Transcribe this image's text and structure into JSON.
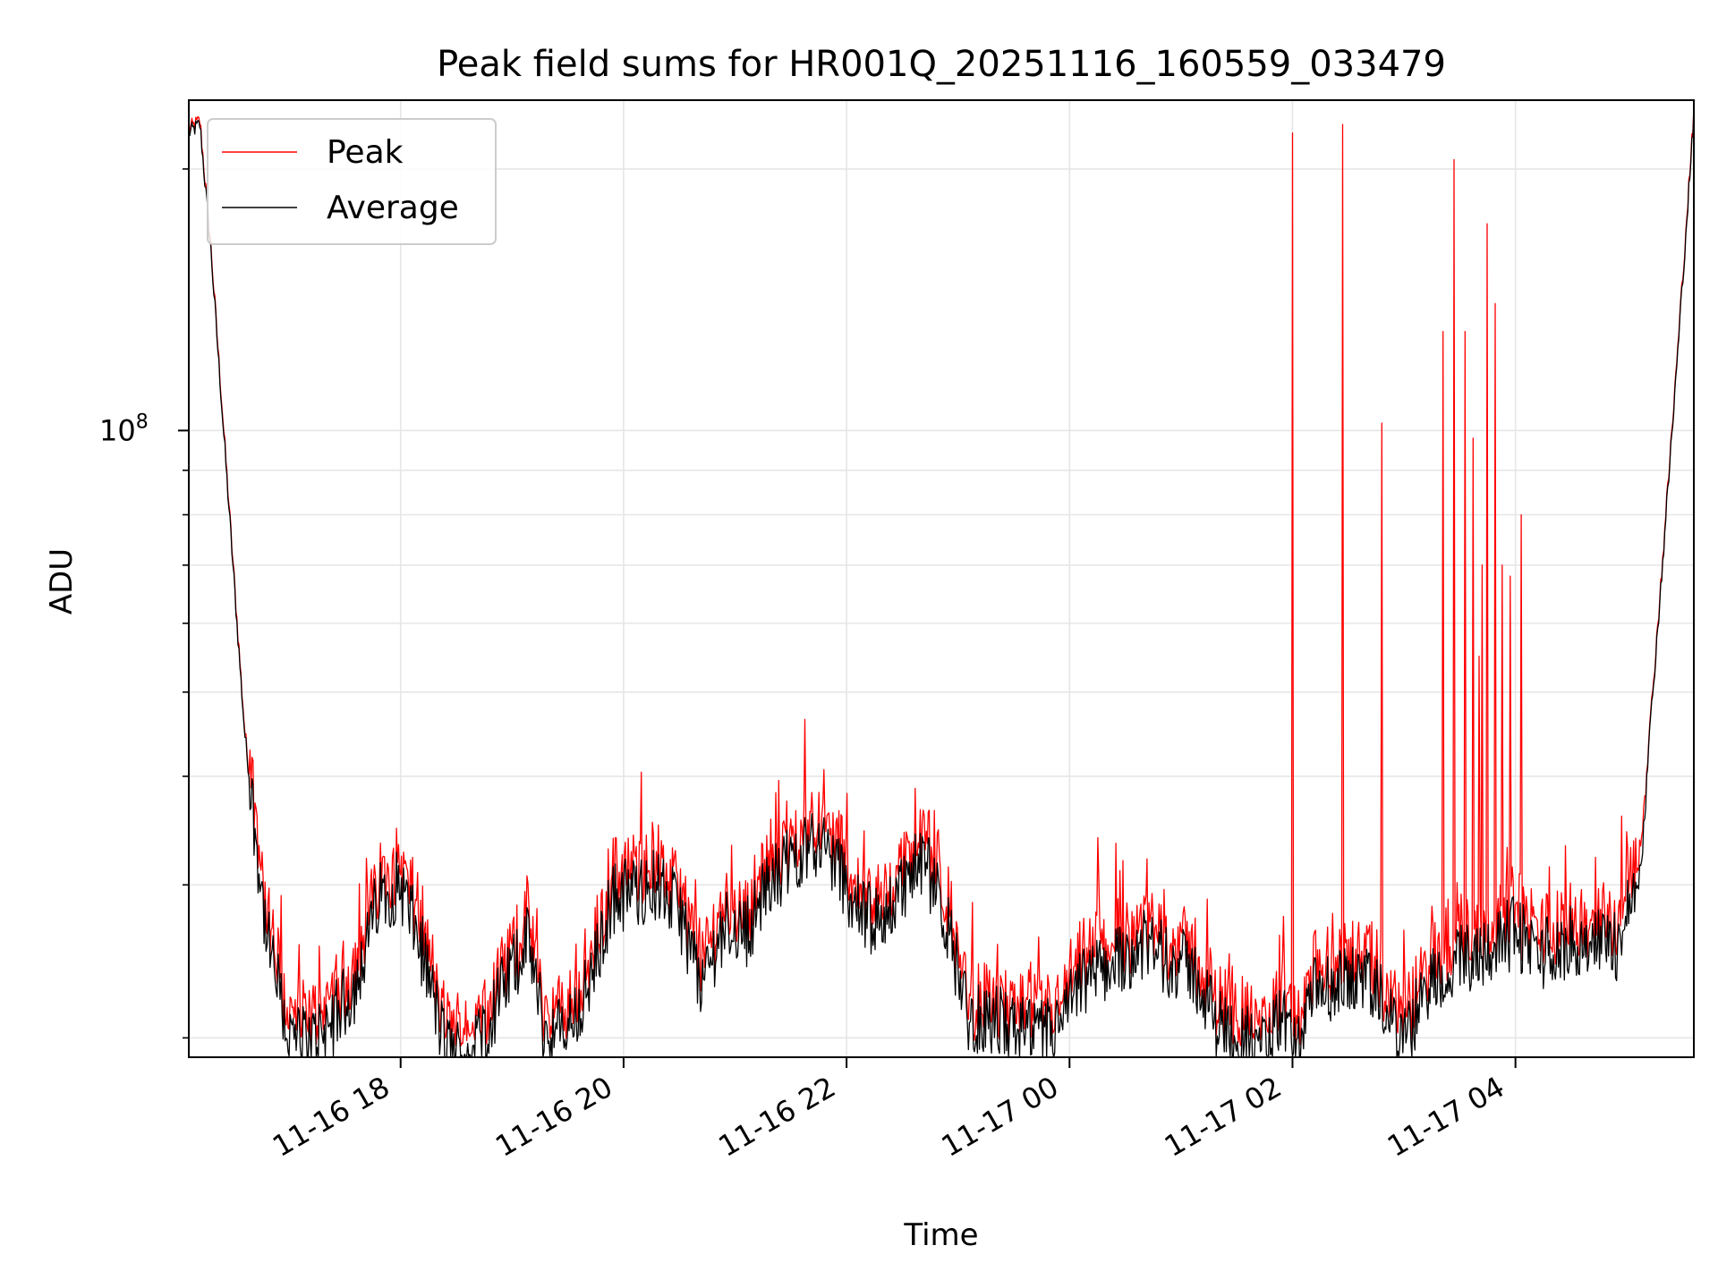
{
  "chart_data": {
    "type": "line",
    "title": "Peak field sums for HR001Q_20251116_160559_033479",
    "xlabel": "Time",
    "ylabel": "ADU",
    "y_scale": "log",
    "y_tick_major": {
      "value": 100000000,
      "base": "10",
      "exponent": "8"
    },
    "y_minor_ticks": [
      20000000,
      30000000,
      40000000,
      50000000,
      60000000,
      70000000,
      80000000,
      90000000,
      200000000
    ],
    "ylim": [
      19000000,
      240000000
    ],
    "x_unit": "hours since 11-16 16:06",
    "xlim": [
      0,
      13.5
    ],
    "x_ticks": [
      {
        "value": 1.9,
        "label": "11-16 18"
      },
      {
        "value": 3.9,
        "label": "11-16 20"
      },
      {
        "value": 5.9,
        "label": "11-16 22"
      },
      {
        "value": 7.9,
        "label": "11-17 00"
      },
      {
        "value": 9.9,
        "label": "11-17 02"
      },
      {
        "value": 11.9,
        "label": "11-17 04"
      }
    ],
    "grid": true,
    "legend_position": "top-left",
    "series": [
      {
        "name": "Peak",
        "color": "#ff0000"
      },
      {
        "name": "Average",
        "color": "#000000"
      }
    ],
    "average_profile": {
      "x": [
        0.0,
        0.1,
        0.2,
        0.35,
        0.5,
        0.7,
        0.9,
        1.1,
        1.3,
        1.5,
        1.7,
        1.9,
        2.1,
        2.3,
        2.5,
        2.7,
        2.9,
        3.05,
        3.2,
        3.4,
        3.6,
        3.8,
        4.0,
        4.2,
        4.4,
        4.6,
        4.8,
        5.0,
        5.2,
        5.4,
        5.6,
        5.8,
        6.0,
        6.2,
        6.4,
        6.6,
        6.8,
        7.0,
        7.2,
        7.4,
        7.6,
        7.8,
        8.0,
        8.2,
        8.4,
        8.6,
        8.8,
        9.0,
        9.2,
        9.4,
        9.6,
        9.8,
        9.95,
        10.1,
        10.3,
        10.5,
        10.7,
        10.9,
        11.1,
        11.3,
        11.5,
        11.7,
        11.9,
        12.1,
        12.3,
        12.5,
        12.8,
        13.0,
        13.2,
        13.35,
        13.5
      ],
      "values": [
        220000000,
        225000000,
        160000000,
        85000000,
        45000000,
        26000000,
        20000000,
        19800000,
        21000000,
        23000000,
        29000000,
        30000000,
        25000000,
        19500000,
        19000000,
        21000000,
        24000000,
        26000000,
        20000000,
        20500000,
        23000000,
        29000000,
        29500000,
        30000000,
        28000000,
        23000000,
        27000000,
        26500000,
        30000000,
        32000000,
        34000000,
        32000000,
        28000000,
        27000000,
        30000000,
        32000000,
        27000000,
        21000000,
        21000000,
        20500000,
        20000000,
        20500000,
        23000000,
        24000000,
        25000000,
        25500000,
        24500000,
        24000000,
        21000000,
        20500000,
        19000000,
        21000000,
        19500000,
        22500000,
        23000000,
        23500000,
        22000000,
        19500000,
        23000000,
        24000000,
        25000000,
        25500000,
        26500000,
        25000000,
        25500000,
        26000000,
        25500000,
        30000000,
        65000000,
        120000000,
        230000000
      ]
    },
    "peak_spikes": [
      {
        "x": 9.9,
        "value": 220000000
      },
      {
        "x": 10.35,
        "value": 225000000
      },
      {
        "x": 10.7,
        "value": 102000000
      },
      {
        "x": 11.25,
        "value": 130000000
      },
      {
        "x": 11.35,
        "value": 205000000
      },
      {
        "x": 11.45,
        "value": 130000000
      },
      {
        "x": 11.52,
        "value": 98000000
      },
      {
        "x": 11.57,
        "value": 55000000
      },
      {
        "x": 11.6,
        "value": 70000000
      },
      {
        "x": 11.65,
        "value": 173000000
      },
      {
        "x": 11.72,
        "value": 140000000
      },
      {
        "x": 11.78,
        "value": 70000000
      },
      {
        "x": 11.85,
        "value": 68000000
      },
      {
        "x": 11.95,
        "value": 80000000
      },
      {
        "x": 12.85,
        "value": 36000000
      },
      {
        "x": 2.05,
        "value": 31000000
      },
      {
        "x": 5.5,
        "value": 35000000
      },
      {
        "x": 8.15,
        "value": 34000000
      },
      {
        "x": 8.38,
        "value": 32000000
      }
    ]
  }
}
